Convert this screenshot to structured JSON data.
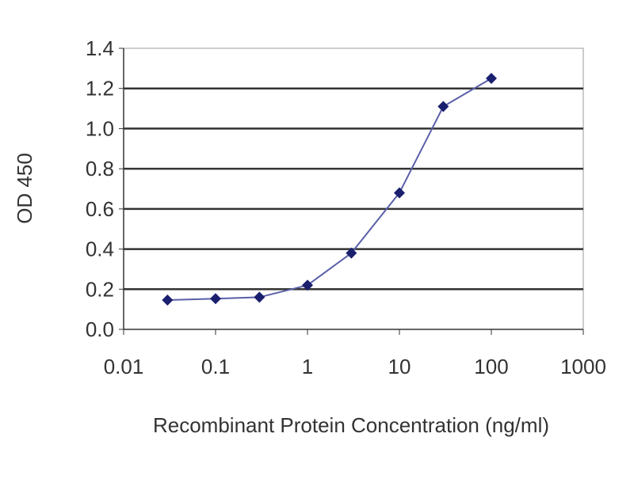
{
  "chart_data": {
    "type": "line",
    "title": "",
    "xlabel": "Recombinant Protein Concentration (ng/ml)",
    "ylabel": "OD 450",
    "xscale": "log",
    "xlim": [
      0.01,
      1000
    ],
    "ylim": [
      0,
      1.4
    ],
    "xticks": [
      "0.01",
      "0.1",
      "1",
      "10",
      "100",
      "1000"
    ],
    "xtick_values": [
      0.01,
      0.1,
      1,
      10,
      100,
      1000
    ],
    "yticks": [
      "0.0",
      "0.2",
      "0.4",
      "0.6",
      "0.8",
      "1.0",
      "1.2",
      "1.4"
    ],
    "ytick_values": [
      0,
      0.2,
      0.4,
      0.6,
      0.8,
      1.0,
      1.2,
      1.4
    ],
    "grid": "horizontal",
    "marker": "diamond",
    "series_color": "#1a1f6e",
    "line_color": "#5a5fa8",
    "x": [
      0.03,
      0.1,
      0.3,
      1,
      3,
      10,
      30,
      100
    ],
    "y": [
      0.146,
      0.153,
      0.16,
      0.22,
      0.38,
      0.68,
      1.11,
      1.25
    ]
  }
}
